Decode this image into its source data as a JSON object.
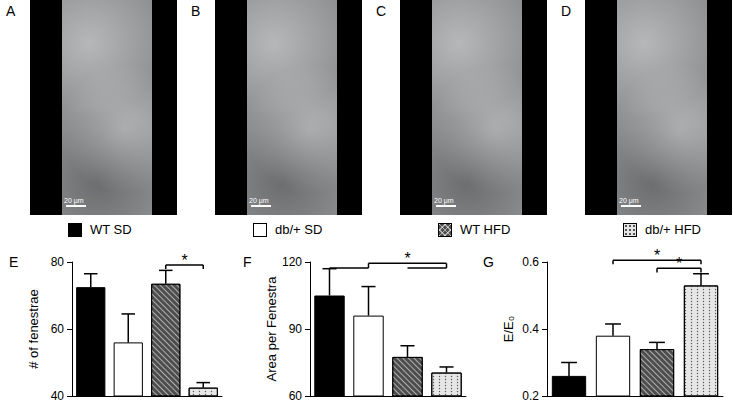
{
  "image_panels": [
    {
      "label": "A",
      "scale_bar": "20 μm"
    },
    {
      "label": "B",
      "scale_bar": "20 μm"
    },
    {
      "label": "C",
      "scale_bar": "20 μm"
    },
    {
      "label": "D",
      "scale_bar": "20 μm"
    }
  ],
  "chart_data": [
    {
      "type": "bar",
      "label": "E",
      "ylabel": "# of fenestrae",
      "categories": [
        "WT SD",
        "db/+ SD",
        "WT HFD",
        "db/+ HFD"
      ],
      "values": [
        72.5,
        56,
        73.5,
        42.5
      ],
      "errors": [
        4,
        8.5,
        4,
        1.5
      ],
      "colors": [
        "#000000",
        "#ffffff",
        "#4d4d4d",
        "#e6e6e6"
      ],
      "ylim": [
        40,
        80
      ],
      "yticks": [
        40,
        60,
        80
      ],
      "grid": false,
      "tick_labels": "y",
      "annotations": [
        {
          "text": "*",
          "between": [
            [
              2
            ],
            [
              3
            ]
          ]
        }
      ]
    },
    {
      "type": "bar",
      "label": "F",
      "ylabel": "Area per Fenestra",
      "categories": [
        "WT SD",
        "db/+ SD",
        "WT HFD",
        "db/+ HFD"
      ],
      "values": [
        105,
        96,
        77.5,
        70.5
      ],
      "errors": [
        12,
        13,
        5,
        2.5
      ],
      "colors": [
        "#000000",
        "#ffffff",
        "#4d4d4d",
        "#e6e6e6"
      ],
      "ylim": [
        60,
        120
      ],
      "yticks": [
        60,
        90,
        120
      ],
      "grid": false,
      "tick_labels": "y",
      "annotations": [
        {
          "text": "*",
          "between": [
            [
              0,
              1
            ],
            [
              2,
              3
            ]
          ]
        }
      ]
    },
    {
      "type": "bar",
      "label": "G",
      "ylabel": "E/E₀",
      "categories": [
        "WT SD",
        "db/+ SD",
        "WT HFD",
        "db/+ HFD"
      ],
      "values": [
        0.26,
        0.38,
        0.34,
        0.53
      ],
      "errors": [
        0.04,
        0.035,
        0.02,
        0.035
      ],
      "colors": [
        "#000000",
        "#ffffff",
        "#4d4d4d",
        "#e6e6e6"
      ],
      "ylim": [
        0.2,
        0.6
      ],
      "yticks": [
        0.2,
        0.4,
        0.6
      ],
      "grid": false,
      "tick_labels": "y",
      "annotations": [
        {
          "text": "*",
          "between": [
            [
              1
            ],
            [
              3
            ]
          ]
        },
        {
          "text": "*",
          "between": [
            [
              2
            ],
            [
              3
            ]
          ]
        }
      ]
    }
  ]
}
